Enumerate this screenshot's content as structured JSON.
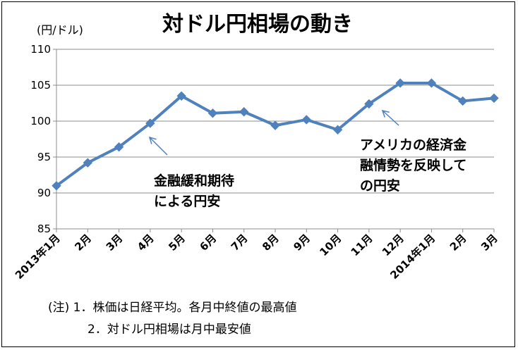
{
  "chart_data": {
    "type": "line",
    "title": "対ドル円相場の動き",
    "unit_label": "(円/ドル)",
    "xlabel": "",
    "ylabel": "",
    "ylim": [
      85,
      110
    ],
    "y_ticks": [
      "85",
      "90",
      "95",
      "100",
      "105",
      "110"
    ],
    "categories": [
      "2013年1月",
      "2月",
      "3月",
      "4月",
      "5月",
      "6月",
      "7月",
      "8月",
      "9月",
      "10月",
      "11月",
      "12月",
      "2014年1月",
      "2月",
      "3月"
    ],
    "series": [
      {
        "values": [
          91.0,
          94.2,
          96.4,
          99.7,
          103.5,
          101.1,
          101.3,
          99.4,
          100.2,
          98.8,
          102.4,
          105.3,
          105.3,
          102.8,
          103.2
        ]
      }
    ],
    "grid": "horizontal",
    "legend": "none",
    "line_color": "#4f81bd",
    "annotations": [
      {
        "lines": [
          "金融緩和期待",
          "による円安"
        ],
        "points_to": "4月"
      },
      {
        "lines": [
          "アメリカの経済金",
          "融情勢を反映して",
          "の円安"
        ],
        "points_to": "11月"
      }
    ],
    "notes": [
      "(注)  1．株価は日経平均。各月中終値の最高値",
      "2．対ドル円相場は月中最安値"
    ]
  }
}
